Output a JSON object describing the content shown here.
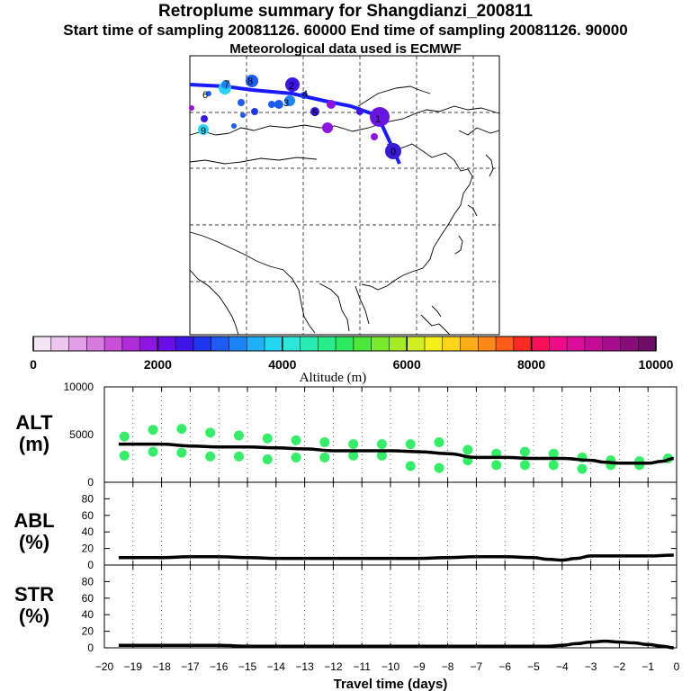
{
  "header": {
    "title": "Retroplume summary for Shangdianzi_200811",
    "sampling": "Start time of sampling 20081126. 60000     End time of sampling 20081126. 90000",
    "met": "Meteorological data used is ECMWF"
  },
  "colors": {
    "trajectory": "#1a1aff",
    "alt_points": "#33ee66",
    "line": "#000000"
  },
  "map": {
    "day_labels": [
      "0",
      "1",
      "2",
      "3",
      "4",
      "5",
      "6",
      "7",
      "8",
      "9"
    ]
  },
  "colorbar": {
    "ticks": [
      "0",
      "2000",
      "4000",
      "6000",
      "8000",
      "10000"
    ],
    "label": "Altitude (m)",
    "colors": [
      "#f5e6f5",
      "#ecc6ee",
      "#e29ee6",
      "#d77ade",
      "#c94fd8",
      "#b02cd6",
      "#8e16e0",
      "#6a10e6",
      "#3c16e6",
      "#1e36ee",
      "#1b5cf2",
      "#1c84f6",
      "#1fb0f6",
      "#25d6f2",
      "#2be8d8",
      "#28ecb4",
      "#28ec8a",
      "#2ee85e",
      "#4ee83a",
      "#7aea2c",
      "#a6ec26",
      "#d0ee20",
      "#f4ee1c",
      "#fcd41a",
      "#fcae18",
      "#fc8818",
      "#fc5c1a",
      "#fc2a24",
      "#f8105a",
      "#ee0c8a",
      "#dc0c9a",
      "#c40c96",
      "#a80c8e",
      "#8a0c7a",
      "#6e0c66"
    ]
  },
  "panels": {
    "alt": {
      "name": "ALT",
      "unit": "(m)",
      "yticks": [
        "10000",
        "5000",
        "0"
      ]
    },
    "abl": {
      "name": "ABL",
      "unit": "(%)",
      "yticks": [
        "80",
        "60",
        "40",
        "20",
        "0"
      ]
    },
    "str": {
      "name": "STR",
      "unit": "(%)",
      "yticks": [
        "80",
        "60",
        "40",
        "20",
        "0"
      ]
    }
  },
  "chart_data": [
    {
      "type": "scatter",
      "title": "ALT",
      "ylabel": "ALT (m)",
      "xlabel": "Travel time (days)",
      "xlim": [
        -20,
        0
      ],
      "ylim": [
        0,
        10000
      ],
      "x": [
        -19.3,
        -19.3,
        -18.3,
        -18.3,
        -17.3,
        -17.3,
        -16.3,
        -16.3,
        -15.3,
        -15.3,
        -14.3,
        -14.3,
        -13.3,
        -13.3,
        -12.3,
        -12.3,
        -11.3,
        -11.3,
        -10.3,
        -10.3,
        -9.3,
        -9.3,
        -8.3,
        -8.3,
        -7.3,
        -7.3,
        -6.3,
        -6.3,
        -5.3,
        -5.3,
        -4.3,
        -4.3,
        -3.3,
        -3.3,
        -2.3,
        -2.3,
        -1.3,
        -1.3,
        -0.3
      ],
      "y": [
        4800,
        2800,
        5500,
        3200,
        5600,
        3100,
        5200,
        2700,
        4900,
        2700,
        4600,
        2400,
        4400,
        2600,
        4200,
        2600,
        4000,
        2800,
        4000,
        2800,
        4000,
        1700,
        4200,
        1500,
        3400,
        2300,
        3000,
        1800,
        3200,
        1800,
        3000,
        1800,
        2600,
        1400,
        2300,
        1800,
        2200,
        1800,
        2500
      ],
      "mean_line": {
        "x": [
          -19.5,
          -18,
          -17,
          -16,
          -15,
          -14,
          -13,
          -12,
          -11,
          -10,
          -9,
          -8,
          -7,
          -6,
          -5,
          -4,
          -3,
          -2.5,
          -2,
          -1,
          -0.5,
          -0.1
        ],
        "y": [
          4000,
          4000,
          3800,
          3700,
          3700,
          3600,
          3500,
          3300,
          3300,
          3300,
          3200,
          3000,
          2600,
          2600,
          2500,
          2500,
          2300,
          2100,
          2000,
          2000,
          2200,
          2500
        ]
      }
    },
    {
      "type": "line",
      "title": "ABL",
      "ylabel": "ABL (%)",
      "xlim": [
        -20,
        0
      ],
      "ylim": [
        0,
        100
      ],
      "x": [
        -19.5,
        -18,
        -17,
        -16,
        -15,
        -14,
        -13,
        -12,
        -11,
        -10,
        -9,
        -8,
        -7,
        -6,
        -5,
        -4.5,
        -4,
        -3.5,
        -3,
        -2,
        -1,
        -0.1
      ],
      "y": [
        9,
        9,
        10,
        10,
        9,
        8,
        8,
        8,
        8,
        8,
        8,
        9,
        10,
        10,
        9,
        7,
        6,
        8,
        11,
        11,
        11,
        12
      ]
    },
    {
      "type": "line",
      "title": "STR",
      "ylabel": "STR (%)",
      "xlim": [
        -20,
        0
      ],
      "ylim": [
        0,
        100
      ],
      "x": [
        -19.5,
        -18,
        -17,
        -16,
        -15,
        -14,
        -13,
        -12,
        -11,
        -10,
        -9,
        -8,
        -7,
        -6,
        -5,
        -4.5,
        -4,
        -3.5,
        -3,
        -2.5,
        -2,
        -1.5,
        -1,
        -0.5,
        -0.1
      ],
      "y": [
        3,
        3,
        3,
        3,
        2,
        2,
        2,
        2,
        2,
        2,
        2,
        2,
        2,
        2,
        2,
        2,
        3,
        5,
        7,
        8,
        7,
        6,
        4,
        2,
        0
      ],
      "xticks": [
        -20,
        -19,
        -18,
        -17,
        -16,
        -15,
        -14,
        -13,
        -12,
        -11,
        -10,
        -9,
        -8,
        -7,
        -6,
        -5,
        -4,
        -3,
        -2,
        -1,
        0
      ],
      "xticklabels": [
        "−20",
        "−19",
        "−18",
        "−17",
        "−16",
        "−15",
        "−14",
        "−13",
        "−12",
        "−11",
        "−10",
        "−9",
        "−8",
        "−7",
        "−6",
        "−5",
        "−4",
        "−3",
        "−2",
        "−1",
        "0"
      ]
    }
  ]
}
